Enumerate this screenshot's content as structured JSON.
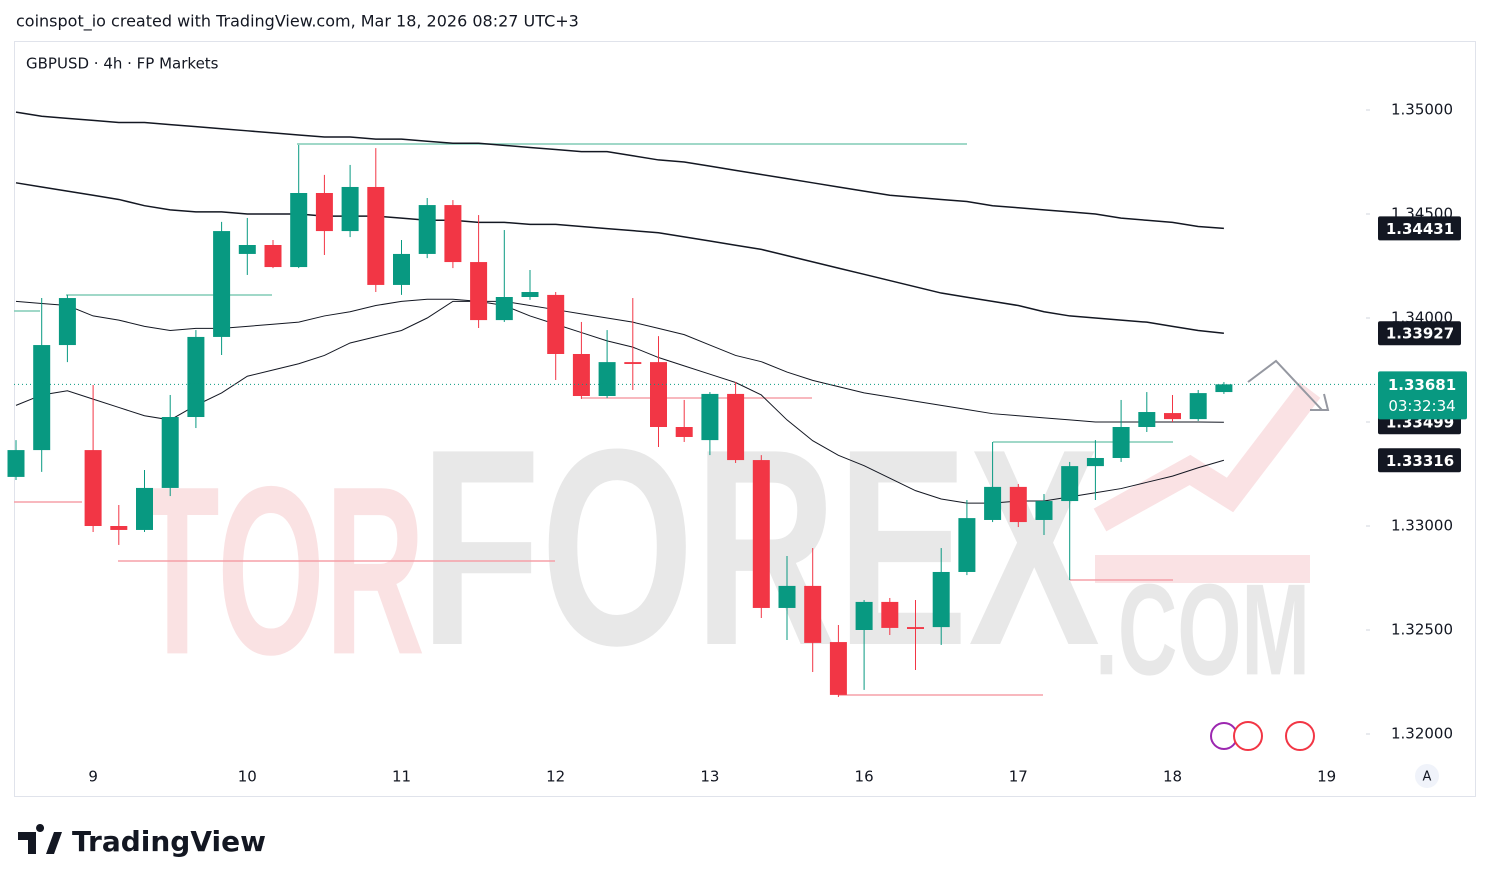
{
  "header": {
    "attribution": "coinspot_io created with TradingView.com, Mar 18, 2026 08:27 UTC+3",
    "logo": "TradingView"
  },
  "chart_data": {
    "type": "candlestick",
    "title": "GBPUSD · 4h · FP Markets",
    "watermark": {
      "first": "TOR",
      "second": "FOREX",
      "third": ".COM"
    },
    "auto_scale_button": "A",
    "countdown": "03:32:34",
    "colors": {
      "up": "#089981",
      "down": "#f23645",
      "line": "#131722"
    },
    "categories": [
      null,
      null,
      null,
      "9",
      null,
      null,
      null,
      null,
      null,
      "10",
      null,
      null,
      null,
      null,
      null,
      "11",
      null,
      null,
      null,
      null,
      null,
      "12",
      null,
      null,
      null,
      null,
      null,
      "13",
      null,
      null,
      null,
      null,
      null,
      "16",
      null,
      null,
      null,
      null,
      null,
      "17",
      null,
      null,
      null,
      null,
      null,
      "18",
      null,
      null,
      null,
      null,
      null,
      "19"
    ],
    "open": [
      1.33236,
      1.33365,
      1.3387,
      1.33365,
      1.33,
      1.32981,
      1.33183,
      1.33524,
      1.33909,
      1.34308,
      1.34351,
      1.34245,
      1.34601,
      1.34418,
      1.3463,
      1.34159,
      1.34308,
      1.34543,
      1.34269,
      1.3399,
      1.34101,
      1.34111,
      1.33827,
      1.33625,
      1.33788,
      1.33788,
      1.33476,
      1.33413,
      1.33635,
      1.33317,
      1.32606,
      1.32712,
      1.32442,
      1.325,
      1.32635,
      1.32514,
      1.32514,
      1.32779,
      1.33029,
      1.33188,
      1.33029,
      1.3312,
      1.33288,
      1.33327,
      1.33476,
      1.33543,
      1.33514,
      1.33644,
      null,
      null,
      null,
      null
    ],
    "high": [
      1.33413,
      1.34096,
      1.34111,
      1.33678,
      1.33101,
      1.33269,
      1.3363,
      1.33942,
      1.34462,
      1.34481,
      1.34375,
      1.34832,
      1.34688,
      1.34736,
      1.34817,
      1.34375,
      1.34577,
      1.34567,
      1.34495,
      1.34423,
      1.34231,
      1.34125,
      1.33981,
      1.33942,
      1.34096,
      1.33913,
      1.33606,
      1.33644,
      1.33692,
      1.33341,
      1.32856,
      1.32894,
      1.32524,
      1.32644,
      1.32654,
      1.32644,
      1.32894,
      1.33125,
      1.33404,
      1.33202,
      1.33154,
      1.33308,
      1.33413,
      1.33606,
      1.33644,
      1.3363,
      1.33654,
      1.33692,
      null,
      null,
      null,
      null
    ],
    "low": [
      1.33221,
      1.3326,
      1.33788,
      1.32971,
      1.32909,
      1.32971,
      1.33144,
      1.33471,
      1.33822,
      1.34207,
      1.3424,
      1.3424,
      1.34303,
      1.34389,
      1.34125,
      1.34111,
      1.34288,
      1.3424,
      1.33952,
      1.33981,
      1.34087,
      1.33702,
      1.33611,
      1.33615,
      1.33654,
      1.3338,
      1.33404,
      1.33341,
      1.33303,
      1.32558,
      1.32452,
      1.32298,
      1.32178,
      1.32212,
      1.32476,
      1.32308,
      1.32428,
      1.32764,
      1.33019,
      1.32995,
      1.32957,
      1.3274,
      1.33125,
      1.33308,
      1.33452,
      1.335,
      1.33505,
      1.33635,
      null,
      null,
      null,
      null
    ],
    "close": [
      1.33365,
      1.3387,
      1.34096,
      1.33,
      1.32981,
      1.33183,
      1.33524,
      1.33909,
      1.34418,
      1.34351,
      1.34245,
      1.34601,
      1.34418,
      1.3463,
      1.34159,
      1.34308,
      1.34543,
      1.34269,
      1.3399,
      1.34101,
      1.34125,
      1.33827,
      1.33625,
      1.33788,
      1.33779,
      1.33476,
      1.33428,
      1.33635,
      1.33317,
      1.32606,
      1.32712,
      1.32438,
      1.32188,
      1.32635,
      1.3251,
      1.32505,
      1.32779,
      1.33038,
      1.33188,
      1.33019,
      1.3312,
      1.33288,
      1.33327,
      1.33476,
      1.33548,
      1.33514,
      1.33639,
      1.33681,
      null,
      null,
      null,
      null
    ],
    "lines": [
      {
        "values": [
          1.3499,
          1.3497,
          1.3496,
          1.3495,
          1.3494,
          1.3494,
          1.3493,
          1.3492,
          1.3491,
          1.349,
          1.3489,
          1.3488,
          1.3487,
          1.3487,
          1.3486,
          1.3486,
          1.3485,
          1.3484,
          1.3484,
          1.3483,
          1.3482,
          1.3481,
          1.348,
          1.348,
          1.3478,
          1.3476,
          1.3475,
          1.3473,
          1.3471,
          1.3469,
          1.3467,
          1.3465,
          1.3463,
          1.3461,
          1.3459,
          1.3458,
          1.3457,
          1.3456,
          1.3454,
          1.3453,
          1.3452,
          1.3451,
          1.345,
          1.3448,
          1.3447,
          1.3446,
          1.3444,
          1.34431,
          null,
          null,
          null,
          null
        ]
      },
      {
        "values": [
          1.3465,
          1.3463,
          1.3461,
          1.3459,
          1.3457,
          1.3454,
          1.3452,
          1.3451,
          1.3451,
          1.345,
          1.345,
          1.345,
          1.3449,
          1.3449,
          1.3449,
          1.3448,
          1.3447,
          1.3447,
          1.3446,
          1.3446,
          1.3445,
          1.3445,
          1.3444,
          1.3443,
          1.3442,
          1.3441,
          1.3439,
          1.3437,
          1.3435,
          1.3433,
          1.343,
          1.3427,
          1.3424,
          1.3421,
          1.3418,
          1.3415,
          1.3412,
          1.341,
          1.3408,
          1.3406,
          1.3403,
          1.3401,
          1.34,
          1.3399,
          1.3398,
          1.3396,
          1.3394,
          1.33927,
          null,
          null,
          null,
          null
        ]
      },
      {
        "values": [
          1.3408,
          1.3407,
          1.3406,
          1.3401,
          1.3399,
          1.3396,
          1.3394,
          1.3395,
          1.3395,
          1.3396,
          1.3397,
          1.3398,
          1.3401,
          1.3403,
          1.3406,
          1.3408,
          1.3409,
          1.3409,
          1.3408,
          1.3408,
          1.3406,
          1.3404,
          1.3402,
          1.34,
          1.3398,
          1.3395,
          1.3392,
          1.3387,
          1.3382,
          1.3379,
          1.3374,
          1.337,
          1.3367,
          1.3364,
          1.3362,
          1.336,
          1.3358,
          1.3356,
          1.3354,
          1.3353,
          1.3352,
          1.3351,
          1.335,
          1.335,
          1.335,
          1.335,
          1.335,
          1.33499,
          null,
          null,
          null,
          null
        ]
      },
      {
        "values": [
          1.3358,
          1.3363,
          1.3365,
          1.3361,
          1.3357,
          1.3353,
          1.3351,
          1.3358,
          1.3364,
          1.3372,
          1.3375,
          1.3378,
          1.3382,
          1.3388,
          1.3391,
          1.3394,
          1.34,
          1.3408,
          1.3408,
          1.3406,
          1.3401,
          1.3397,
          1.3393,
          1.3389,
          1.3386,
          1.3381,
          1.3377,
          1.3373,
          1.3369,
          1.3363,
          1.3351,
          1.3341,
          1.3334,
          1.3329,
          1.3323,
          1.3317,
          1.3313,
          1.3311,
          1.3311,
          1.3312,
          1.3312,
          1.3314,
          1.3316,
          1.3318,
          1.3321,
          1.3324,
          1.3328,
          1.33316,
          null,
          null,
          null,
          null
        ]
      }
    ],
    "ylim": [
      1.31875,
      1.35327
    ],
    "yticks": [
      {
        "value": 1.32,
        "label": "1.32000"
      },
      {
        "value": 1.325,
        "label": "1.32500"
      },
      {
        "value": 1.33,
        "label": "1.33000"
      },
      {
        "value": 1.335,
        "label": "1.33500"
      },
      {
        "value": 1.34,
        "label": "1.34000"
      },
      {
        "value": 1.345,
        "label": "1.34500"
      },
      {
        "value": 1.35,
        "label": "1.35000"
      }
    ]
  }
}
